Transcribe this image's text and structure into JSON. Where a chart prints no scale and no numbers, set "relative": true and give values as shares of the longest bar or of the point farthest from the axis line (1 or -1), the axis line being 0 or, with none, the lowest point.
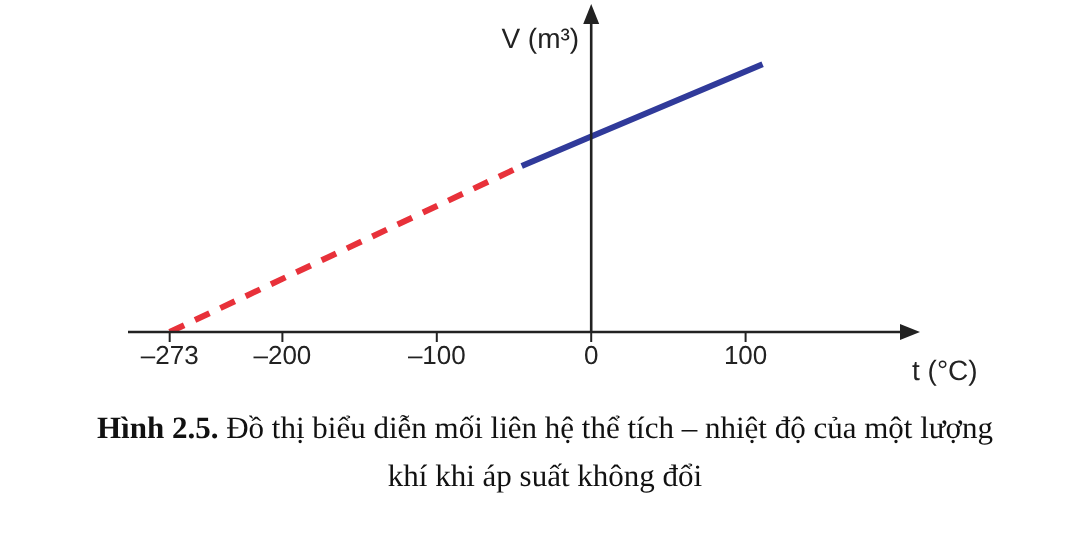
{
  "chart_data": {
    "type": "line",
    "relative": true,
    "title": "Hình 2.5. Đồ thị biểu diễn mối liên hệ thể tích – nhiệt độ của một lượng khí khi áp suất không đổi",
    "xlabel": "t (°C)",
    "ylabel": "V (m³)",
    "xlim": [
      -300,
      200
    ],
    "xticks": [
      {
        "value": -273,
        "label": "–273"
      },
      {
        "value": -200,
        "label": "–200"
      },
      {
        "value": -100,
        "label": "–100"
      },
      0,
      100
    ],
    "marker": "none",
    "series": [
      {
        "color": "#e8313a",
        "line_style": "dashed",
        "x": [
          -273,
          -45
        ],
        "values": [
          0,
          0.62
        ]
      },
      {
        "color": "#303a9a",
        "line_style": "solid",
        "x": [
          -45,
          0,
          111
        ],
        "values": [
          0.62,
          0.73,
          1
        ]
      }
    ]
  }
}
